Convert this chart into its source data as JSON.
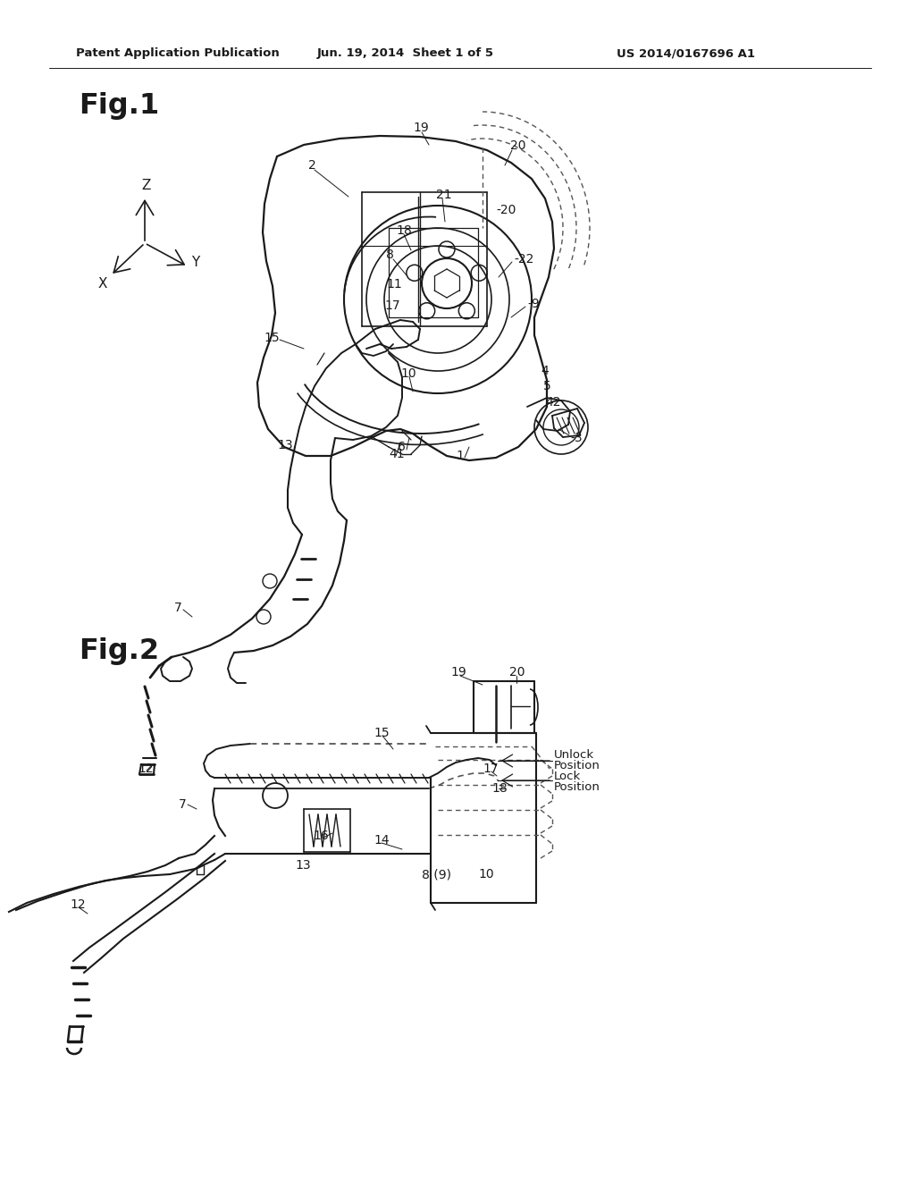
{
  "header_left": "Patent Application Publication",
  "header_center": "Jun. 19, 2014  Sheet 1 of 5",
  "header_right": "US 2014/0167696 A1",
  "fig1_label": "Fig.1",
  "fig2_label": "Fig.2",
  "bg_color": "#ffffff",
  "line_color": "#1a1a1a",
  "header_fontsize": 9.5,
  "fig_label_fontsize": 22
}
